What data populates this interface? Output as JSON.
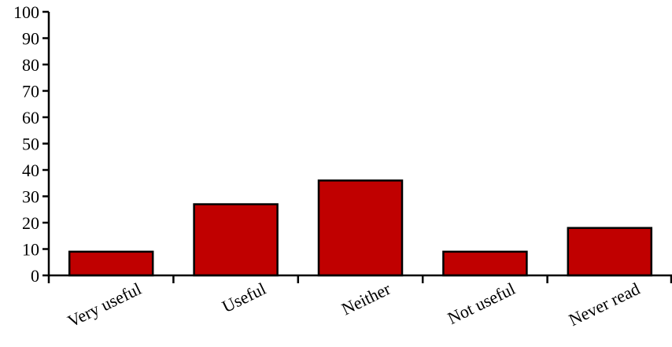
{
  "chart_data": {
    "type": "bar",
    "title": "",
    "xlabel": "",
    "ylabel": "",
    "categories": [
      "Very useful",
      "Useful",
      "Neither",
      "Not useful",
      "Never read"
    ],
    "values": [
      9,
      27,
      36,
      9,
      18
    ],
    "ylim": [
      0,
      100
    ],
    "yticks": [
      "0",
      "10",
      "20",
      "30",
      "40",
      "50",
      "60",
      "70",
      "80",
      "90",
      "100"
    ],
    "grid": false,
    "legend": "none",
    "bar_color": "#c00000",
    "axis_color": "#000000"
  }
}
